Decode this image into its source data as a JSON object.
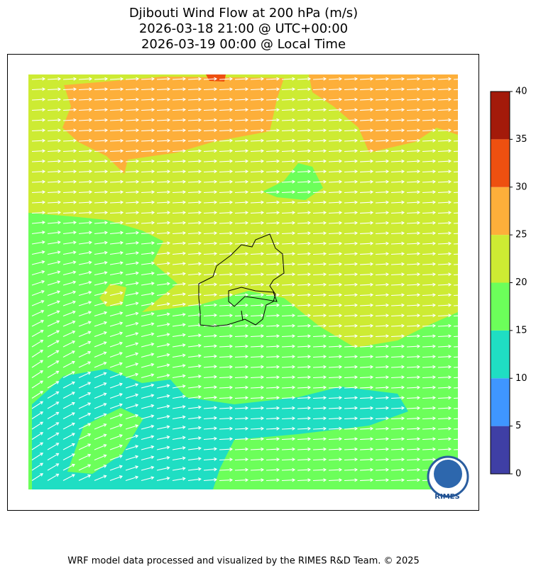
{
  "map": {
    "title": [
      "Djibouti Wind Flow at 200 hPa (m/s)",
      "2026-03-18 21:00 @ UTC+00:00",
      "2026-03-19 00:00 @ Local Time"
    ],
    "colorbar": {
      "levels": [
        0,
        5,
        10,
        15,
        20,
        25,
        30,
        35,
        40
      ],
      "colors": [
        "#3f3fa5",
        "#3f96ff",
        "#1fdec3",
        "#6cff5a",
        "#cdeb33",
        "#fdaf3a",
        "#ee5010",
        "#a31a0a"
      ]
    },
    "logo": "RIMES",
    "footer": "WRF model data processed and visualized by the RIMES R&D Team. © 2025"
  }
}
